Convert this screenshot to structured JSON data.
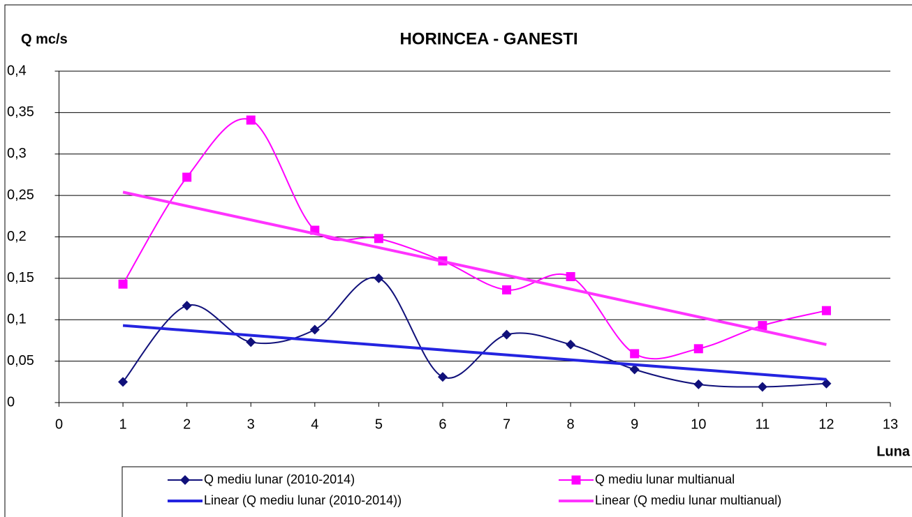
{
  "chart_data": {
    "type": "line",
    "title": "HORINCEA -  GANESTI",
    "y_label": "Q mc/s",
    "x_label": "Luna",
    "xlim": [
      0,
      13
    ],
    "xticks": [
      0,
      1,
      2,
      3,
      4,
      5,
      6,
      7,
      8,
      9,
      10,
      11,
      12,
      13
    ],
    "ylim": [
      0,
      0.4
    ],
    "yticks": [
      0,
      {
        "value": 0.05,
        "label": "0,05"
      },
      {
        "value": 0.1,
        "label": "0,1"
      },
      {
        "value": 0.15,
        "label": "0,15"
      },
      {
        "value": 0.2,
        "label": "0,2"
      },
      {
        "value": 0.25,
        "label": "0,25"
      },
      {
        "value": 0.3,
        "label": "0,3"
      },
      {
        "value": 0.35,
        "label": "0,35"
      },
      {
        "value": 0.4,
        "label": "0,4"
      }
    ],
    "grid": true,
    "series": [
      {
        "name": "Q mediu lunar (2010-2014)",
        "color": "#10107a",
        "marker": "diamond",
        "smooth": true,
        "x": [
          1,
          2,
          3,
          4,
          5,
          6,
          7,
          8,
          9,
          10,
          11,
          12
        ],
        "values": [
          0.025,
          0.117,
          0.073,
          0.088,
          0.15,
          0.031,
          0.082,
          0.07,
          0.04,
          0.022,
          0.019,
          0.023
        ]
      },
      {
        "name": "Q mediu lunar multianual",
        "color": "#ff00ff",
        "marker": "square",
        "smooth": true,
        "x": [
          1,
          2,
          3,
          4,
          5,
          6,
          7,
          8,
          9,
          10,
          11,
          12
        ],
        "values": [
          0.143,
          0.272,
          0.341,
          0.208,
          0.198,
          0.171,
          0.136,
          0.152,
          0.059,
          0.065,
          0.093,
          0.111
        ]
      },
      {
        "name": "Linear (Q mediu lunar (2010-2014))",
        "color": "#2424e0",
        "width": 4,
        "x": [
          1,
          12
        ],
        "values": [
          0.093,
          0.028
        ]
      },
      {
        "name": "Linear (Q mediu lunar multianual)",
        "color": "#ff33ff",
        "width": 4,
        "x": [
          1,
          12
        ],
        "values": [
          0.254,
          0.07
        ]
      }
    ]
  }
}
